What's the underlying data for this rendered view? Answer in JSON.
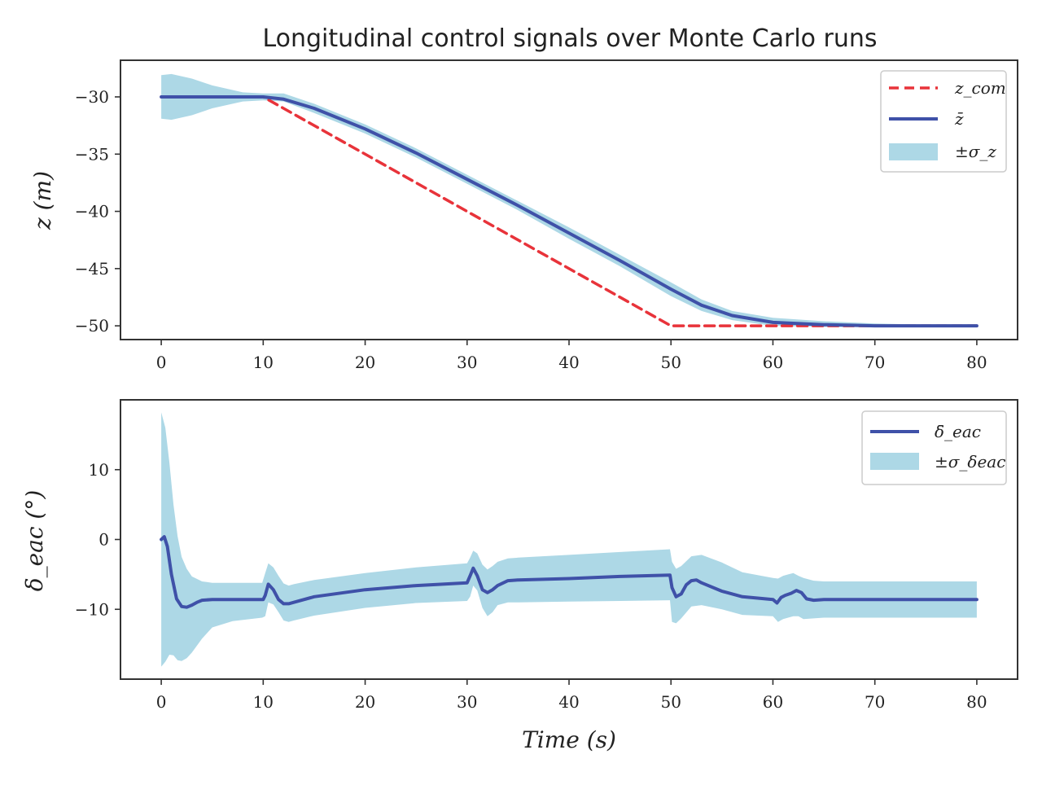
{
  "chart_data": [
    {
      "type": "line",
      "title": "Longitudinal control signals over Monte Carlo runs",
      "xlabel": "",
      "ylabel": "z (m)",
      "xlim": [
        -4,
        84
      ],
      "ylim": [
        -51.2,
        -26.8
      ],
      "xticks": [
        0,
        10,
        20,
        30,
        40,
        50,
        60,
        70,
        80
      ],
      "yticks": [
        -30,
        -35,
        -40,
        -45,
        -50
      ],
      "ytick_labels": [
        "−30",
        "−35",
        "−40",
        "−45",
        "−50"
      ],
      "grid": false,
      "legend_position": "top-right",
      "legend": [
        "z_com",
        "z̄",
        "±σ_z"
      ],
      "colors": {
        "command": "#e8333a",
        "mean": "#3f51a8",
        "band": "#add8e6"
      },
      "series": [
        {
          "name": "z_com",
          "style": "dashed",
          "x": [
            0,
            10,
            50,
            80
          ],
          "y": [
            -30,
            -30,
            -50,
            -50
          ]
        },
        {
          "name": "z̄",
          "style": "solid",
          "x": [
            0,
            5,
            10,
            12,
            15,
            20,
            25,
            30,
            35,
            40,
            45,
            50,
            53,
            56,
            60,
            65,
            70,
            75,
            80
          ],
          "y": [
            -30,
            -30,
            -30,
            -30.2,
            -31,
            -32.8,
            -34.9,
            -37.2,
            -39.5,
            -41.9,
            -44.3,
            -46.8,
            -48.2,
            -49.1,
            -49.7,
            -49.9,
            -50,
            -50,
            -50
          ]
        },
        {
          "name": "±σ_z",
          "style": "band",
          "x": [
            0,
            1,
            3,
            5,
            8,
            10,
            12,
            15,
            20,
            25,
            30,
            35,
            40,
            45,
            50,
            53,
            56,
            60,
            65,
            70,
            75,
            80
          ],
          "upper": [
            -28.1,
            -28.0,
            -28.4,
            -29.0,
            -29.6,
            -29.7,
            -29.7,
            -30.6,
            -32.4,
            -34.5,
            -36.8,
            -39.1,
            -41.4,
            -43.8,
            -46.2,
            -47.7,
            -48.7,
            -49.3,
            -49.6,
            -49.8,
            -49.9,
            -50
          ],
          "lower": [
            -31.9,
            -32.0,
            -31.6,
            -31.0,
            -30.4,
            -30.3,
            -30.4,
            -31.4,
            -33.2,
            -35.3,
            -37.6,
            -39.9,
            -42.4,
            -44.8,
            -47.4,
            -48.7,
            -49.5,
            -50.0,
            -50.1,
            -50.1,
            -50.1,
            -50
          ]
        }
      ]
    },
    {
      "type": "line",
      "title": "",
      "xlabel": "Time (s)",
      "ylabel": "δ_eac (°)",
      "xlim": [
        -4,
        84
      ],
      "ylim": [
        -20,
        20
      ],
      "xticks": [
        0,
        10,
        20,
        30,
        40,
        50,
        60,
        70,
        80
      ],
      "yticks": [
        10,
        0,
        -10
      ],
      "ytick_labels": [
        "10",
        "0",
        "−10"
      ],
      "grid": false,
      "legend_position": "top-right",
      "legend": [
        "δ̄_eac",
        "±σ_δeac"
      ],
      "colors": {
        "mean": "#3f51a8",
        "band": "#add8e6"
      },
      "series": [
        {
          "name": "δ̄_eac",
          "style": "solid",
          "x": [
            0,
            0.3,
            0.6,
            1.0,
            1.5,
            2.0,
            2.5,
            3.0,
            3.5,
            4.0,
            5.0,
            7.0,
            10.0,
            10.2,
            10.5,
            11.0,
            11.5,
            12.0,
            12.5,
            13,
            15,
            20,
            25,
            30,
            30.3,
            30.6,
            31.0,
            31.5,
            32.0,
            32.5,
            33,
            34,
            35,
            40,
            45,
            49.9,
            50.1,
            50.5,
            51.0,
            51.5,
            52.0,
            52.5,
            53,
            55,
            57,
            60,
            60.4,
            60.8,
            61.2,
            61.8,
            62.3,
            62.8,
            63.3,
            64,
            65,
            70,
            75,
            80
          ],
          "y": [
            0,
            0.4,
            -1,
            -5,
            -8.5,
            -9.6,
            -9.7,
            -9.4,
            -9.0,
            -8.7,
            -8.6,
            -8.6,
            -8.6,
            -8.0,
            -6.4,
            -7.2,
            -8.6,
            -9.2,
            -9.2,
            -9.0,
            -8.2,
            -7.2,
            -6.6,
            -6.2,
            -5.2,
            -4.1,
            -5.2,
            -7.2,
            -7.6,
            -7.2,
            -6.6,
            -5.9,
            -5.8,
            -5.6,
            -5.3,
            -5.1,
            -6.9,
            -8.2,
            -7.8,
            -6.5,
            -5.9,
            -5.8,
            -6.2,
            -7.4,
            -8.2,
            -8.6,
            -9.1,
            -8.3,
            -8.0,
            -7.7,
            -7.3,
            -7.6,
            -8.5,
            -8.7,
            -8.6,
            -8.6,
            -8.6,
            -8.6
          ]
        },
        {
          "name": "±σ_δeac",
          "style": "band",
          "x": [
            0,
            0.4,
            0.8,
            1.2,
            1.6,
            2.0,
            2.5,
            3.0,
            4.0,
            5.0,
            7.0,
            9.9,
            10.2,
            10.5,
            11.0,
            11.5,
            12.0,
            12.5,
            13,
            15,
            20,
            25,
            30,
            30.3,
            30.6,
            31.0,
            31.5,
            32.0,
            32.5,
            33,
            34,
            35,
            40,
            45,
            49.9,
            50.1,
            50.5,
            51.0,
            52.0,
            53,
            55,
            57,
            60,
            60.5,
            61,
            61.5,
            62,
            62.5,
            63,
            64,
            65,
            70,
            75,
            80
          ],
          "upper": [
            18.2,
            16,
            11,
            5,
            0.5,
            -2.5,
            -4.2,
            -5.3,
            -6.0,
            -6.2,
            -6.2,
            -6.2,
            -4.8,
            -3.4,
            -4.0,
            -5.2,
            -6.3,
            -6.6,
            -6.4,
            -5.8,
            -4.8,
            -4.0,
            -3.4,
            -2.6,
            -1.6,
            -2.0,
            -3.6,
            -4.3,
            -3.8,
            -3.2,
            -2.7,
            -2.6,
            -2.2,
            -1.8,
            -1.4,
            -3.2,
            -4.2,
            -3.8,
            -2.4,
            -2.2,
            -3.3,
            -4.7,
            -5.5,
            -5.6,
            -5.2,
            -5.0,
            -4.8,
            -5.2,
            -5.5,
            -5.9,
            -6.0,
            -6.0,
            -6.0,
            -6.0
          ],
          "lower": [
            -18.2,
            -17.5,
            -16.5,
            -16.6,
            -17.3,
            -17.4,
            -17.0,
            -16.2,
            -14.2,
            -12.6,
            -11.7,
            -11.2,
            -11.0,
            -9.0,
            -9.3,
            -10.4,
            -11.6,
            -11.8,
            -11.6,
            -10.9,
            -9.8,
            -9.1,
            -8.8,
            -8.2,
            -6.6,
            -7.3,
            -9.8,
            -11.0,
            -10.4,
            -9.4,
            -9.0,
            -9.0,
            -8.9,
            -8.8,
            -8.7,
            -11.8,
            -12.0,
            -11.3,
            -9.6,
            -9.4,
            -10.0,
            -10.8,
            -11.0,
            -11.8,
            -11.4,
            -11.2,
            -11.0,
            -11.0,
            -11.4,
            -11.3,
            -11.2,
            -11.2,
            -11.2,
            -11.2
          ]
        }
      ]
    }
  ]
}
